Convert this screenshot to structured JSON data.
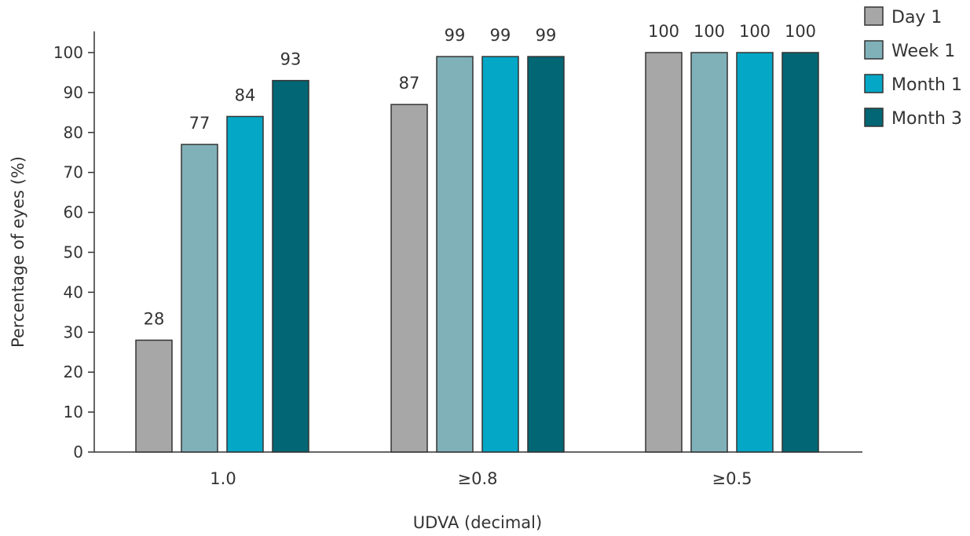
{
  "chart_data": {
    "type": "bar",
    "title": "",
    "xlabel": "UDVA (decimal)",
    "ylabel": "Percentage of eyes (%)",
    "ylim": [
      0,
      100
    ],
    "yticks": [
      0,
      10,
      20,
      30,
      40,
      50,
      60,
      70,
      80,
      90,
      100
    ],
    "categories": [
      "1.0",
      "≥0.8",
      "≥0.5"
    ],
    "series": [
      {
        "name": "Day 1",
        "color": "#a7a7a7",
        "values": [
          28,
          87,
          100
        ]
      },
      {
        "name": "Week 1",
        "color": "#81b1b8",
        "values": [
          77,
          99,
          100
        ]
      },
      {
        "name": "Month 1",
        "color": "#04a7c5",
        "values": [
          84,
          99,
          100
        ]
      },
      {
        "name": "Month 3",
        "color": "#036674",
        "values": [
          93,
          99,
          100
        ]
      }
    ],
    "data_labels": [
      [
        "28",
        "87",
        "100"
      ],
      [
        "77",
        "99",
        "100"
      ],
      [
        "84",
        "99",
        "100"
      ],
      [
        "93",
        "99",
        "100"
      ]
    ],
    "grid": false,
    "legend_position": "top-right"
  }
}
